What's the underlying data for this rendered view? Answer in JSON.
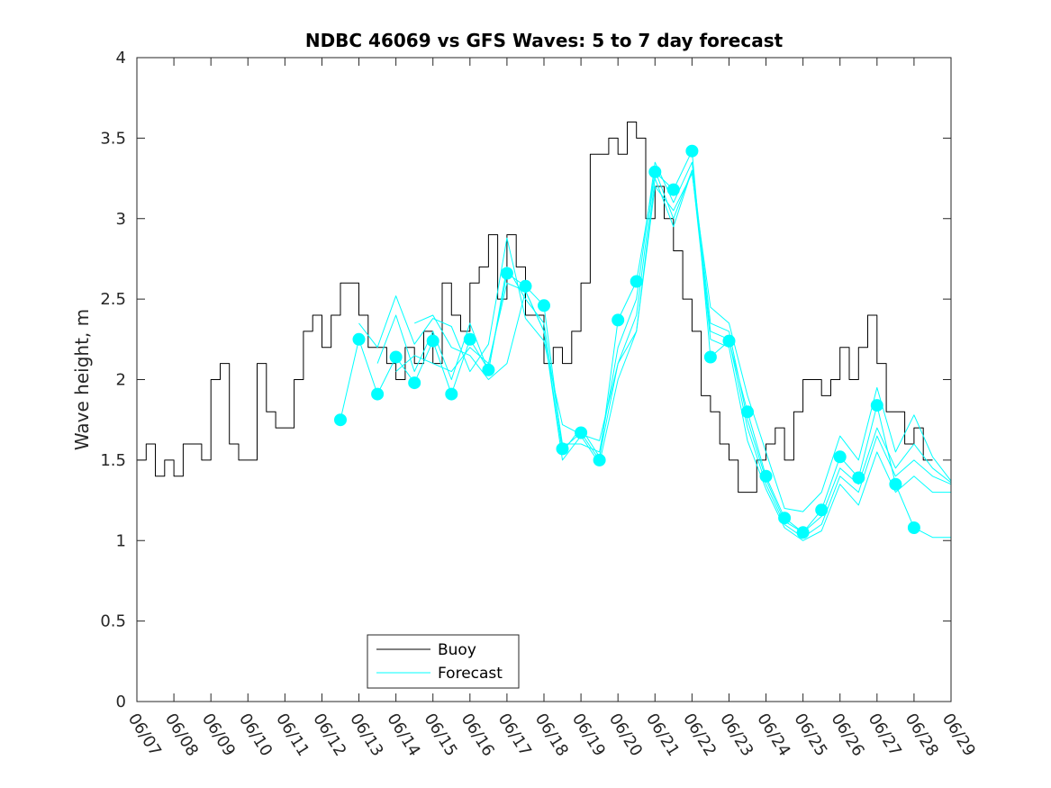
{
  "chart_data": {
    "type": "line",
    "title": "NDBC 46069 vs GFS Waves: 5 to 7 day forecast",
    "xlabel": "",
    "ylabel": "Wave height, m",
    "xlim": [
      "06/07",
      "06/29"
    ],
    "ylim": [
      0,
      4
    ],
    "yticks": [
      "0",
      "0.5",
      "1",
      "1.5",
      "2",
      "2.5",
      "3",
      "3.5",
      "4"
    ],
    "xticks": [
      "06/07",
      "06/08",
      "06/09",
      "06/10",
      "06/11",
      "06/12",
      "06/13",
      "06/14",
      "06/15",
      "06/16",
      "06/17",
      "06/18",
      "06/19",
      "06/20",
      "06/21",
      "06/22",
      "06/23",
      "06/24",
      "06/25",
      "06/26",
      "06/27",
      "06/28",
      "06/29"
    ],
    "legend": {
      "position": "bottom-center",
      "entries": [
        "Buoy",
        "Forecast"
      ]
    },
    "colors": {
      "buoy": "#000000",
      "forecast": "#00ffff",
      "frame": "#262626"
    },
    "series": [
      {
        "name": "Buoy",
        "x": [
          0,
          0.25,
          0.5,
          0.75,
          1,
          1.25,
          1.5,
          1.75,
          2,
          2.25,
          2.5,
          2.75,
          3,
          3.25,
          3.5,
          3.75,
          4,
          4.25,
          4.5,
          4.75,
          5,
          5.25,
          5.5,
          5.75,
          6,
          6.25,
          6.5,
          6.75,
          7,
          7.25,
          7.5,
          7.75,
          8,
          8.25,
          8.5,
          8.75,
          9,
          9.25,
          9.5,
          9.75,
          10,
          10.25,
          10.5,
          10.75,
          11,
          11.25,
          11.5,
          11.75,
          12,
          12.25,
          12.5,
          12.75,
          13,
          13.25,
          13.5,
          13.75,
          14,
          14.25,
          14.5,
          14.75,
          15,
          15.25,
          15.5,
          15.75,
          16,
          16.25,
          16.5,
          16.75,
          17,
          17.25,
          17.5,
          17.75,
          18,
          18.25,
          18.5,
          18.75,
          19,
          19.25,
          19.5,
          19.75,
          20,
          20.25,
          20.5,
          20.75,
          21,
          21.25,
          21.5
        ],
        "values": [
          1.5,
          1.6,
          1.4,
          1.5,
          1.4,
          1.6,
          1.6,
          1.5,
          2.0,
          2.1,
          1.6,
          1.5,
          1.5,
          2.1,
          1.8,
          1.7,
          1.7,
          2.0,
          2.3,
          2.4,
          2.2,
          2.4,
          2.6,
          2.6,
          2.4,
          2.2,
          2.2,
          2.1,
          2.0,
          2.2,
          2.1,
          2.3,
          2.1,
          2.6,
          2.4,
          2.3,
          2.6,
          2.7,
          2.9,
          2.5,
          2.9,
          2.7,
          2.4,
          2.4,
          2.1,
          2.2,
          2.1,
          2.3,
          2.6,
          3.4,
          3.4,
          3.5,
          3.4,
          3.6,
          3.5,
          3.0,
          3.2,
          3.0,
          2.8,
          2.5,
          2.3,
          1.9,
          1.8,
          1.6,
          1.5,
          1.3,
          1.3,
          1.5,
          1.6,
          1.7,
          1.5,
          1.8,
          2.0,
          2.0,
          1.9,
          2.0,
          2.2,
          2.0,
          2.2,
          2.4,
          2.1,
          1.8,
          1.8,
          1.6,
          1.7,
          1.5,
          1.5
        ]
      },
      {
        "name": "Forecast",
        "x": [
          5.5,
          6.0,
          6.5,
          7.0,
          7.5,
          8.0,
          8.5,
          9.0,
          9.5,
          10.0,
          10.5,
          11.0,
          11.5,
          12.0,
          12.5,
          13.0,
          13.5,
          14.0,
          14.5,
          15.0,
          15.5,
          16.0,
          16.5,
          17.0,
          17.5,
          18.0,
          18.5,
          19.0,
          19.5,
          20.0,
          20.5,
          21.0,
          21.5,
          22.0
        ],
        "values": [
          1.75,
          2.25,
          1.91,
          2.14,
          1.98,
          2.24,
          1.91,
          2.25,
          2.06,
          2.66,
          2.58,
          2.46,
          1.57,
          1.67,
          1.5,
          2.37,
          2.61,
          3.29,
          3.18,
          3.42,
          2.14,
          2.24,
          1.8,
          1.4,
          1.14,
          1.05,
          1.19,
          1.52,
          1.39,
          1.84,
          1.35,
          1.08,
          1.02,
          1.02
        ]
      },
      {
        "name": "",
        "x": [
          6.0,
          6.5,
          7.0,
          7.5,
          8.0,
          8.5,
          9.0,
          9.5,
          10.0,
          10.5,
          11.0,
          11.5,
          12.0,
          12.5,
          13.0,
          13.5,
          14.0,
          14.5,
          15.0,
          15.5,
          16.0,
          16.5,
          17.0,
          17.5,
          18.0,
          18.5,
          19.0,
          19.5,
          20.0,
          20.5,
          21.0,
          21.5,
          22.0
        ],
        "values": [
          2.35,
          2.2,
          2.52,
          2.22,
          2.38,
          2.33,
          2.05,
          2.22,
          2.88,
          2.38,
          2.24,
          1.72,
          1.66,
          1.62,
          2.1,
          2.3,
          3.2,
          3.05,
          3.28,
          2.45,
          2.35,
          1.9,
          1.55,
          1.2,
          1.18,
          1.3,
          1.65,
          1.5,
          1.95,
          1.55,
          1.78,
          1.52,
          1.37
        ]
      },
      {
        "name": "",
        "x": [
          6.5,
          7.0,
          7.5,
          8.0,
          8.5,
          9.0,
          9.5,
          10.0,
          10.5,
          11.0,
          11.5,
          12.0,
          12.5,
          13.0,
          13.5,
          14.0,
          14.5,
          15.0,
          15.5,
          16.0,
          16.5,
          17.0,
          17.5,
          18.0,
          18.5,
          19.0,
          19.5,
          20.0,
          20.5,
          21.0,
          21.5,
          22.0
        ],
        "values": [
          2.1,
          2.4,
          2.05,
          2.3,
          2.0,
          2.35,
          2.05,
          2.7,
          2.5,
          2.35,
          1.6,
          1.6,
          1.55,
          2.2,
          2.5,
          3.35,
          3.1,
          3.35,
          2.35,
          2.3,
          1.75,
          1.38,
          1.12,
          1.05,
          1.15,
          1.45,
          1.35,
          1.7,
          1.45,
          1.6,
          1.45,
          1.36
        ]
      },
      {
        "name": "",
        "x": [
          7.0,
          7.5,
          8.0,
          8.5,
          9.0,
          9.5,
          10.0,
          10.5,
          11.0,
          11.5,
          12.0,
          12.5,
          13.0,
          13.5,
          14.0,
          14.5,
          15.0,
          15.5,
          16.0,
          16.5,
          17.0,
          17.5,
          18.0,
          18.5,
          19.0,
          19.5,
          20.0,
          20.5,
          21.0,
          21.5,
          22.0
        ],
        "values": [
          2.05,
          2.15,
          2.1,
          2.05,
          2.2,
          2.1,
          2.6,
          2.55,
          2.3,
          1.55,
          1.7,
          1.52,
          2.1,
          2.4,
          3.3,
          3.0,
          3.3,
          2.3,
          2.25,
          1.7,
          1.35,
          1.1,
          1.02,
          1.1,
          1.4,
          1.3,
          1.65,
          1.4,
          1.5,
          1.4,
          1.35
        ]
      },
      {
        "name": "",
        "x": [
          7.5,
          8.0,
          8.5,
          9.0,
          9.5,
          10.0,
          10.5,
          11.0,
          11.5,
          12.0,
          12.5,
          13.0,
          13.5,
          14.0,
          14.5,
          15.0,
          15.5,
          16.0,
          16.5,
          17.0,
          17.5,
          18.0,
          18.5,
          19.0,
          19.5,
          20.0,
          20.5,
          21.0,
          21.5,
          22.0
        ],
        "values": [
          2.35,
          2.4,
          2.2,
          2.15,
          2.0,
          2.1,
          2.55,
          2.3,
          1.5,
          1.65,
          1.48,
          2.0,
          2.3,
          3.25,
          2.95,
          3.3,
          2.25,
          2.2,
          1.62,
          1.32,
          1.08,
          1.0,
          1.06,
          1.35,
          1.22,
          1.55,
          1.3,
          1.4,
          1.3,
          1.3
        ]
      }
    ],
    "markers": {
      "name": "Forecast",
      "x": [
        5.5,
        6.0,
        6.5,
        7.0,
        7.5,
        8.0,
        8.5,
        9.0,
        9.5,
        10.0,
        10.5,
        11.0,
        11.5,
        12.0,
        12.5,
        13.0,
        13.5,
        14.0,
        14.5,
        15.0,
        15.5,
        16.0,
        16.5,
        17.0,
        17.5,
        18.0,
        18.5,
        19.0,
        19.5,
        20.0,
        20.5,
        21.0
      ],
      "values": [
        1.75,
        2.25,
        1.91,
        2.14,
        1.98,
        2.24,
        1.91,
        2.25,
        2.06,
        2.66,
        2.58,
        2.46,
        1.57,
        1.67,
        1.5,
        2.37,
        2.61,
        3.29,
        3.18,
        3.42,
        2.14,
        2.24,
        1.8,
        1.4,
        1.14,
        1.05,
        1.19,
        1.52,
        1.39,
        1.84,
        1.35,
        1.08
      ]
    }
  }
}
